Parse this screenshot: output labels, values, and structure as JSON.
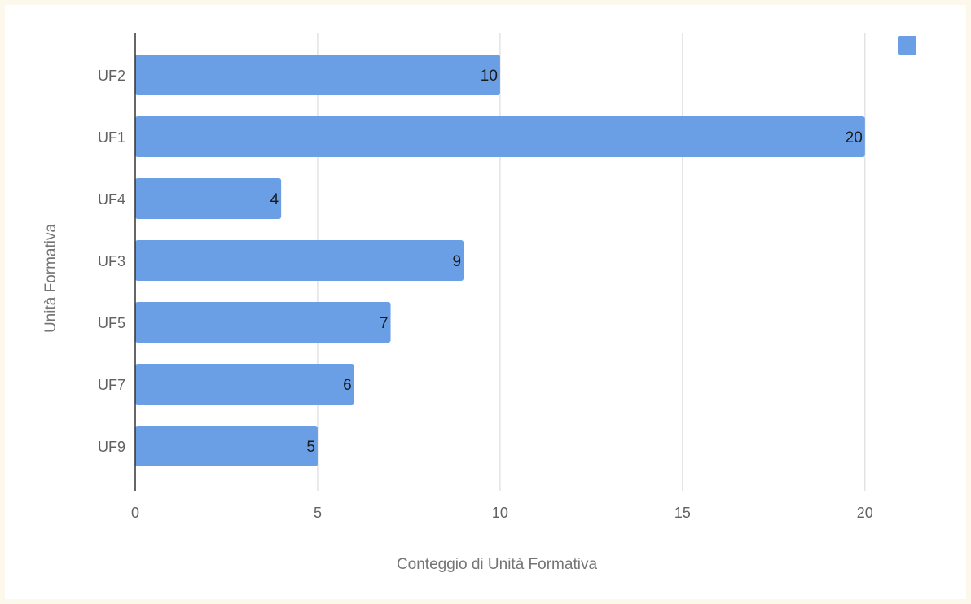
{
  "chart_data": {
    "type": "bar",
    "orientation": "horizontal",
    "categories": [
      "UF2",
      "UF1",
      "UF4",
      "UF3",
      "UF5",
      "UF7",
      "UF9"
    ],
    "series": [
      {
        "name": "",
        "values": [
          10,
          20,
          4,
          9,
          7,
          6,
          5
        ],
        "color": "#6b9fe5"
      }
    ],
    "data_labels": [
      "10",
      "20",
      "4",
      "9",
      "7",
      "6",
      "5"
    ],
    "xlabel": "Conteggio di Unità Formativa",
    "ylabel": "Unità Formativa",
    "xlim": [
      0,
      21.5
    ],
    "xticks": [
      0,
      5,
      10,
      15,
      20
    ],
    "xtick_labels": [
      "0",
      "5",
      "10",
      "15",
      "20"
    ],
    "grid": true,
    "legend": "top-right",
    "colors": {
      "bar": "#6b9fe5",
      "grid": "#d6d6d6",
      "axis": "#333333"
    }
  }
}
